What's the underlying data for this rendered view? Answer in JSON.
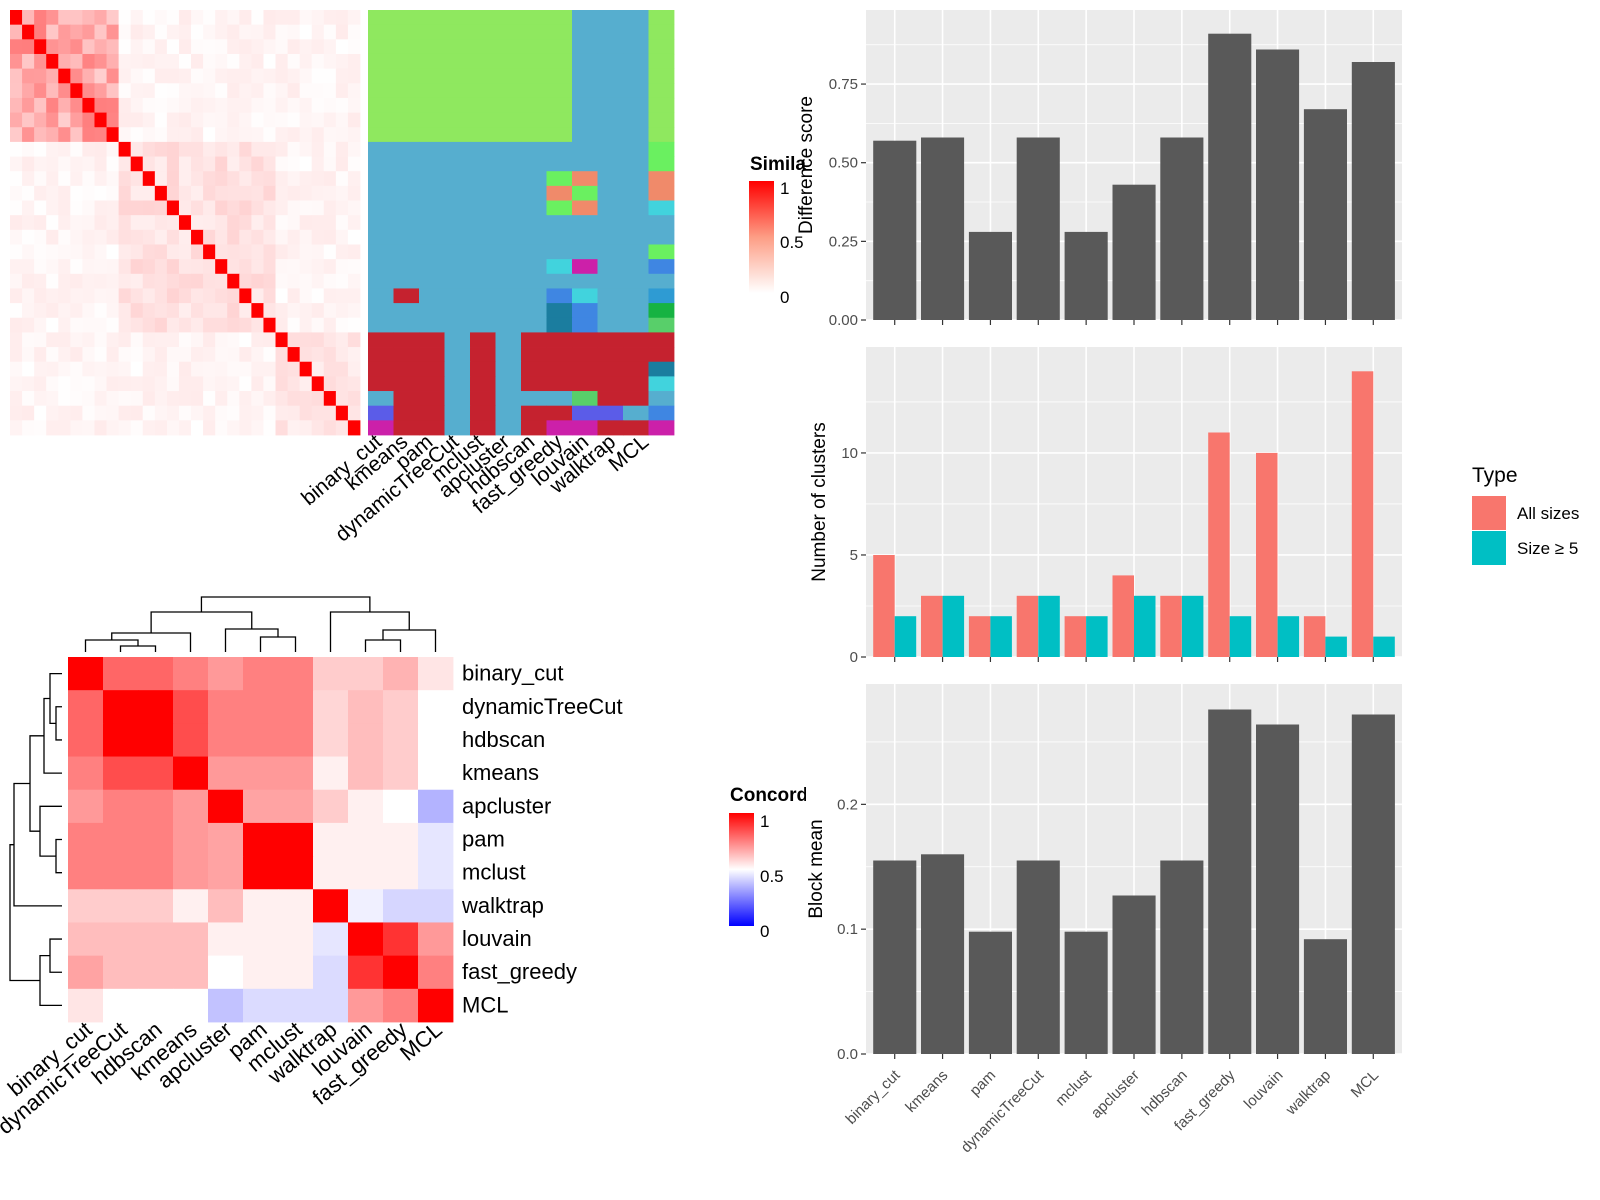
{
  "colors": {
    "heat_low": "#ffffff",
    "heat_high": "#ff0000",
    "conc_low": "#0000ff",
    "conc_mid": "#ffffff",
    "conc_high": "#ff0000",
    "bar": "#595959",
    "all_sizes": "#f8766d",
    "size5": "#00bfc4",
    "panel_bg": "#ebebeb",
    "grid": "#ffffff"
  },
  "legends": {
    "similarity": {
      "title": "Simila",
      "ticks": [
        "1",
        "0.5",
        "0"
      ]
    },
    "concordance": {
      "title": "Concord",
      "ticks": [
        "1",
        "0.5",
        "0"
      ]
    },
    "type": {
      "title": "Type",
      "items": [
        "All sizes",
        "Size ≥ 5"
      ]
    }
  },
  "chart_data": [
    {
      "type": "heatmap",
      "name": "similarity heatmap with cluster membership",
      "methods": [
        "binary_cut",
        "kmeans",
        "pam",
        "dynamicTreeCut",
        "mclust",
        "apcluster",
        "hdbscan",
        "fast_greedy",
        "louvain",
        "walktrap",
        "MCL"
      ],
      "n_terms": 29,
      "similarity_blocks": [
        [
          0,
          9,
          0.35
        ],
        [
          9,
          22,
          0.12
        ],
        [
          22,
          29,
          0.1
        ]
      ],
      "cluster_colors": {
        "g": "#8fe85f",
        "b": "#56aecf",
        "r": "#c5222f",
        "v": "#5b5ce8",
        "m": "#cc20a9",
        "s": "#6af060",
        "o": "#f08a6a",
        "c": "#41d3dd",
        "k": "#1b7d9f",
        "y": "#3f86e2",
        "n": "#16b342",
        "l": "#58cf6a",
        "q": "#2e9bd3"
      },
      "membership": [
        "ggggggggbbbg",
        "ggggggggbbbg",
        "ggggggggbbbg",
        "ggggggggbbbg",
        "ggggggggbbbg",
        "ggggggggbbbg",
        "ggggggggbbbg",
        "ggggggggbbbg",
        "ggggggggbbbg",
        "bbbbbbbbbbbs",
        "bbbbbbbbbbbs",
        "bbbbbbbsobbo",
        "bbbbbbbosbbo",
        "bbbbbbbsobbc",
        "bbbbbbbbbbbb",
        "bbbbbbbbbbbb",
        "bbbbbbbbbbbs",
        "bbbbbbbcmbby",
        "bbbbbbbbbbbb",
        "brbbbbbyc bq",
        "bbbbbbbkybbn",
        "bbbbbbbkybbl",
        "rrrbrbrrrrrr",
        "rrrbrbrrrrrr",
        "rrrbrbrrrrrk",
        "rrrbrbrrrrrc",
        "brrbrbbblrrb",
        "vrrbrbrrvvby",
        "mrrbrbrmmrrm"
      ]
    },
    {
      "type": "heatmap",
      "name": "concordance heatmap",
      "labels": [
        "binary_cut",
        "dynamicTreeCut",
        "hdbscan",
        "kmeans",
        "apcluster",
        "pam",
        "mclust",
        "walktrap",
        "louvain",
        "fast_greedy",
        "MCL"
      ],
      "legend_range": [
        0,
        1
      ],
      "matrix": [
        [
          1.0,
          0.8,
          0.8,
          0.75,
          0.7,
          0.75,
          0.75,
          0.6,
          0.6,
          0.65,
          0.55
        ],
        [
          0.8,
          1.0,
          1.0,
          0.85,
          0.75,
          0.75,
          0.75,
          0.58,
          0.63,
          0.6,
          0.5
        ],
        [
          0.8,
          1.0,
          1.0,
          0.85,
          0.75,
          0.75,
          0.75,
          0.58,
          0.63,
          0.6,
          0.5
        ],
        [
          0.75,
          0.85,
          0.85,
          1.0,
          0.7,
          0.7,
          0.7,
          0.53,
          0.63,
          0.6,
          0.5
        ],
        [
          0.7,
          0.75,
          0.75,
          0.7,
          1.0,
          0.68,
          0.68,
          0.6,
          0.53,
          0.5,
          0.35
        ],
        [
          0.75,
          0.75,
          0.75,
          0.7,
          0.68,
          1.0,
          1.0,
          0.53,
          0.53,
          0.53,
          0.45
        ],
        [
          0.75,
          0.75,
          0.75,
          0.7,
          0.68,
          1.0,
          1.0,
          0.53,
          0.53,
          0.53,
          0.45
        ],
        [
          0.6,
          0.6,
          0.6,
          0.53,
          0.63,
          0.53,
          0.53,
          1.0,
          0.47,
          0.42,
          0.42
        ],
        [
          0.63,
          0.63,
          0.63,
          0.63,
          0.53,
          0.53,
          0.53,
          0.45,
          1.0,
          0.9,
          0.7
        ],
        [
          0.68,
          0.63,
          0.63,
          0.63,
          0.5,
          0.53,
          0.53,
          0.43,
          0.9,
          1.0,
          0.75
        ],
        [
          0.55,
          0.5,
          0.5,
          0.5,
          0.38,
          0.43,
          0.43,
          0.43,
          0.7,
          0.75,
          1.0
        ]
      ]
    },
    {
      "type": "bar",
      "categories": [
        "binary_cut",
        "kmeans",
        "pam",
        "dynamicTreeCut",
        "mclust",
        "apcluster",
        "hdbscan",
        "fast_greedy",
        "louvain",
        "walktrap",
        "MCL"
      ],
      "values": [
        0.57,
        0.58,
        0.28,
        0.58,
        0.28,
        0.43,
        0.58,
        0.91,
        0.86,
        0.67,
        0.82
      ],
      "ylabel": "Difference score",
      "ylim": [
        0,
        0.96
      ],
      "yticks": [
        "0.00",
        "0.25",
        "0.50",
        "0.75"
      ],
      "grid": true
    },
    {
      "type": "bar",
      "categories": [
        "binary_cut",
        "kmeans",
        "pam",
        "dynamicTreeCut",
        "mclust",
        "apcluster",
        "hdbscan",
        "fast_greedy",
        "louvain",
        "walktrap",
        "MCL"
      ],
      "series": [
        {
          "name": "All sizes",
          "values": [
            5,
            3,
            2,
            3,
            2,
            4,
            3,
            11,
            10,
            2,
            14
          ]
        },
        {
          "name": "Size ≥ 5",
          "values": [
            2,
            3,
            2,
            3,
            2,
            3,
            3,
            2,
            2,
            1,
            1
          ]
        }
      ],
      "ylabel": "Number of clusters",
      "ylim": [
        0,
        14.8
      ],
      "yticks": [
        "0",
        "5",
        "10"
      ],
      "legend": "right",
      "grid": true
    },
    {
      "type": "bar",
      "categories": [
        "binary_cut",
        "kmeans",
        "pam",
        "dynamicTreeCut",
        "mclust",
        "apcluster",
        "hdbscan",
        "fast_greedy",
        "louvain",
        "walktrap",
        "MCL"
      ],
      "values": [
        0.155,
        0.16,
        0.098,
        0.155,
        0.098,
        0.127,
        0.155,
        0.276,
        0.264,
        0.092,
        0.272
      ],
      "ylabel": "Block mean",
      "ylim": [
        0,
        0.29
      ],
      "yticks": [
        "0.0",
        "0.1",
        "0.2"
      ],
      "grid": true
    }
  ]
}
